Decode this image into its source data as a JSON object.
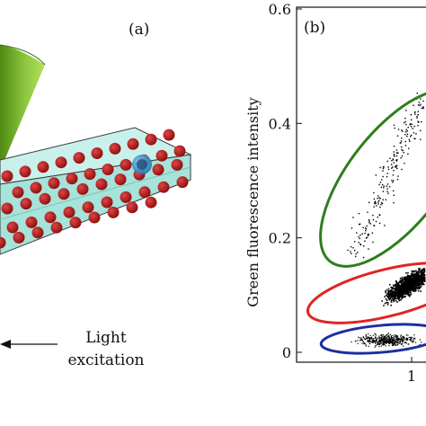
{
  "panel_a": {
    "label": "(a)",
    "annotation_line1": "Light",
    "annotation_line2": "excitation",
    "colors": {
      "cone": "#7ab51d",
      "channel_top": "#c9f1ec",
      "channel_side": "#9fded6",
      "particle": "#b21a1a",
      "highlight_particle": "#1c7fb6",
      "arrow": "#111111"
    }
  },
  "panel_b": {
    "label": "(b)",
    "chart_data": {
      "type": "scatter",
      "ylabel": "Green fluorescence intensity",
      "xlabel": "",
      "ylim": [
        0,
        0.6
      ],
      "yticks": [
        "0",
        "0.2",
        "0.4",
        "0.6"
      ],
      "xticks": [
        "1"
      ],
      "gates": [
        {
          "color": "#2e7d1e",
          "center": [
            1.25,
            0.36
          ],
          "description": "upper population"
        },
        {
          "color": "#e02424",
          "center": [
            1.15,
            0.09
          ],
          "description": "middle population"
        },
        {
          "color": "#1a2fa0",
          "center": [
            1.05,
            0.02
          ],
          "description": "lower population"
        }
      ],
      "grid": false
    }
  }
}
